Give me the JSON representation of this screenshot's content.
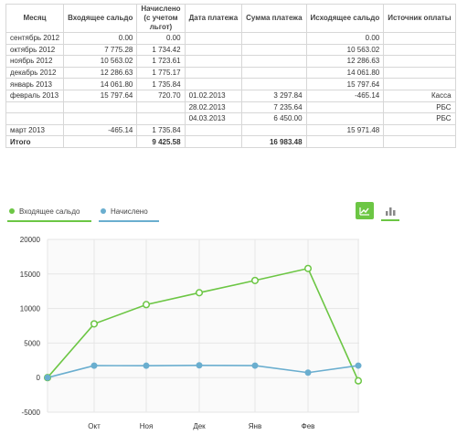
{
  "table": {
    "headers": [
      "Месяц",
      "Входящее сальдо",
      "Начислено\n(с учетом льгот)",
      "Дата платежа",
      "Сумма платежа",
      "Исходящее сальдо",
      "Источник оплаты"
    ],
    "rows": [
      [
        "сентябрь 2012",
        "0.00",
        "0.00",
        "",
        "",
        "0.00",
        ""
      ],
      [
        "октябрь 2012",
        "7 775.28",
        "1 734.42",
        "",
        "",
        "10 563.02",
        ""
      ],
      [
        "ноябрь 2012",
        "10 563.02",
        "1 723.61",
        "",
        "",
        "12 286.63",
        ""
      ],
      [
        "декабрь 2012",
        "12 286.63",
        "1 775.17",
        "",
        "",
        "14 061.80",
        ""
      ],
      [
        "январь 2013",
        "14 061.80",
        "1 735.84",
        "",
        "",
        "15 797.64",
        ""
      ],
      [
        "февраль 2013",
        "15 797.64",
        "720.70",
        "01.02.2013",
        "3 297.84",
        "-465.14",
        "Касса"
      ],
      [
        "",
        "",
        "",
        "28.02.2013",
        "7 235.64",
        "",
        "РБС"
      ],
      [
        "",
        "",
        "",
        "04.03.2013",
        "6 450.00",
        "",
        "РБС"
      ],
      [
        "март 2013",
        "-465.14",
        "1 735.84",
        "",
        "",
        "15 971.48",
        ""
      ],
      [
        "Итого",
        "",
        "9 425.58",
        "",
        "16 983.48",
        "",
        ""
      ]
    ]
  },
  "tabs": [
    {
      "label": "Входящее сальдо",
      "color": "#6cc644"
    },
    {
      "label": "Начислено",
      "color": "#6aaecf"
    }
  ],
  "chart_controls": {
    "line_icon": "line-chart-icon",
    "bar_icon": "bar-chart-icon",
    "active": "line",
    "active_color": "#6cc644"
  },
  "chart_data": {
    "type": "line",
    "categories": [
      "",
      "Окт",
      "Ноя",
      "Дек",
      "Янв",
      "Фев",
      ""
    ],
    "series": [
      {
        "name": "Входящее сальдо",
        "color": "#6cc644",
        "values": [
          0,
          7775.28,
          10563.02,
          12286.63,
          14061.8,
          15797.64,
          -465.14
        ]
      },
      {
        "name": "Начислено",
        "color": "#6aaecf",
        "values": [
          0,
          1734.42,
          1723.61,
          1775.17,
          1735.84,
          720.7,
          1735.84
        ]
      }
    ],
    "yticks": [
      "20000",
      "15000",
      "10000",
      "5000",
      "0",
      "-5000"
    ],
    "ylim": [
      -5000,
      20000
    ],
    "grid": true
  }
}
